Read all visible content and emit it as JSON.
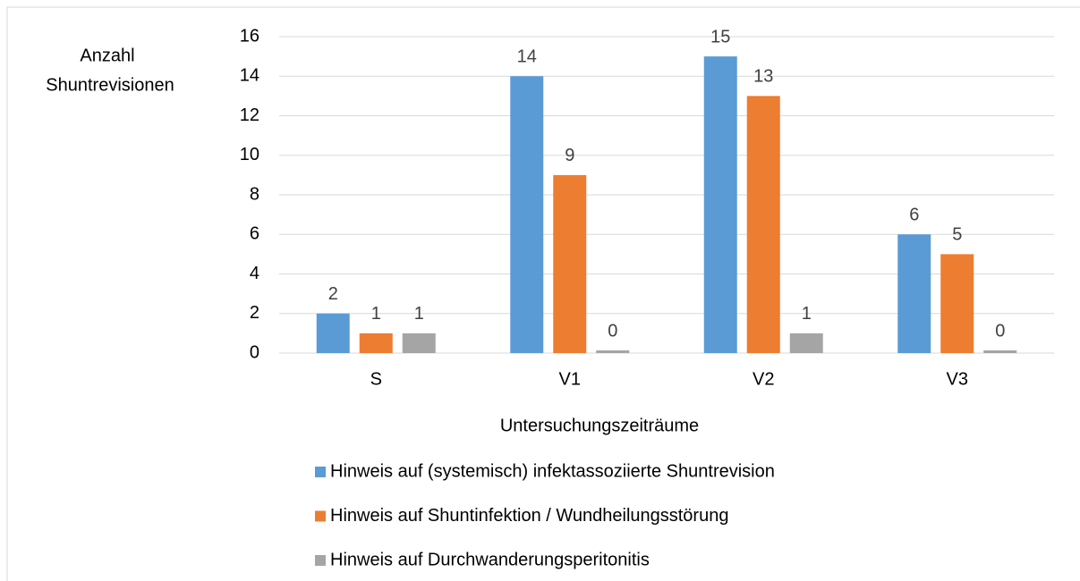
{
  "chart_data": {
    "type": "bar",
    "y_label": [
      "Anzahl",
      "Shuntrevisionen"
    ],
    "x_label": "Untersuchungszeiträume",
    "categories": [
      "S",
      "V1",
      "V2",
      "V3"
    ],
    "series": [
      {
        "name": "Hinweis auf (systemisch) infektassoziierte Shuntrevision",
        "color": "#5b9bd5",
        "values": [
          2,
          14,
          15,
          6
        ]
      },
      {
        "name": "Hinweis auf Shuntinfektion / Wundheilungsstörung",
        "color": "#ed7d31",
        "values": [
          1,
          9,
          13,
          5
        ]
      },
      {
        "name": "Hinweis auf Durchwanderungsperitonitis",
        "color": "#a5a5a5",
        "values": [
          1,
          0,
          1,
          0
        ]
      }
    ],
    "ylim": [
      0,
      16
    ],
    "yticks": [
      0,
      2,
      4,
      6,
      8,
      10,
      12,
      14,
      16
    ],
    "grid": true,
    "legend": "bottom"
  }
}
